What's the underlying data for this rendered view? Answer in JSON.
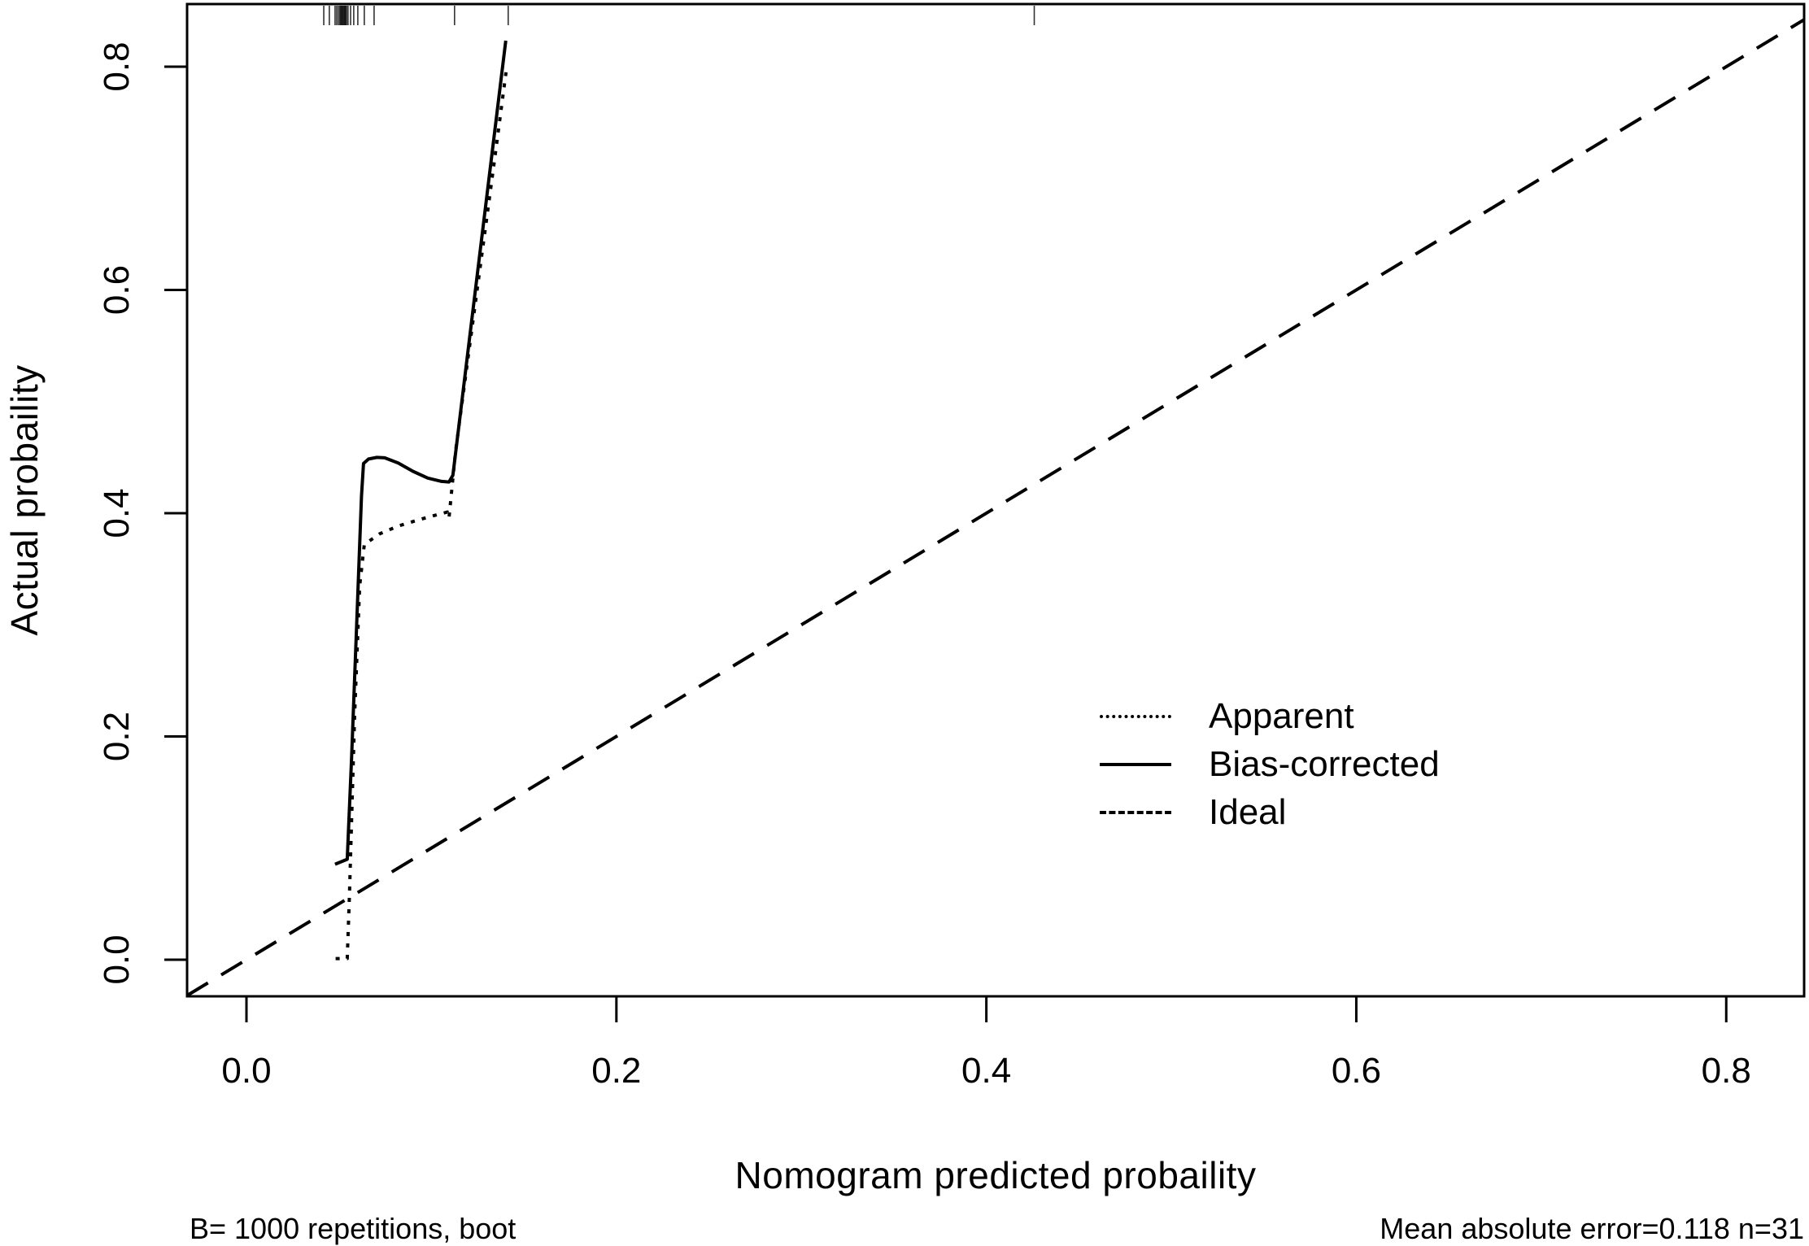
{
  "page": {
    "background_color": "#ffffff",
    "foreground_color": "#000000"
  },
  "chart_data": {
    "type": "line",
    "title": "",
    "xlabel": "Nomogram predicted probaility",
    "ylabel": "Actual probaility",
    "grid": false,
    "legend_position": "right-center",
    "x_axis": {
      "min": -0.0321,
      "max": 0.8421,
      "tick_values": [
        0.0,
        0.2,
        0.4,
        0.6,
        0.8
      ],
      "tick_labels": [
        "0.0",
        "0.2",
        "0.4",
        "0.6",
        "0.8"
      ]
    },
    "y_axis": {
      "min": -0.0328,
      "max": 0.8561,
      "tick_values": [
        0.0,
        0.2,
        0.4,
        0.6,
        0.8
      ],
      "tick_labels": [
        "0.0",
        "0.2",
        "0.4",
        "0.6",
        "0.8"
      ]
    },
    "series": [
      {
        "name": "Apparent",
        "style": "dotted",
        "color": "#000000",
        "points": [
          [
            0.0482,
            0.001
          ],
          [
            0.0545,
            0.001
          ],
          [
            0.0557,
            0.06
          ],
          [
            0.0585,
            0.22
          ],
          [
            0.0612,
            0.335
          ],
          [
            0.0637,
            0.372
          ],
          [
            0.072,
            0.3815
          ],
          [
            0.082,
            0.3885
          ],
          [
            0.092,
            0.3935
          ],
          [
            0.1005,
            0.3975
          ],
          [
            0.1086,
            0.401
          ],
          [
            0.1095,
            0.3957
          ],
          [
            0.113,
            0.455
          ],
          [
            0.12,
            0.542
          ],
          [
            0.128,
            0.641
          ],
          [
            0.134,
            0.715
          ],
          [
            0.1403,
            0.795
          ]
        ]
      },
      {
        "name": "Bias-corrected",
        "style": "solid",
        "color": "#000000",
        "points": [
          [
            0.0479,
            0.0855
          ],
          [
            0.0545,
            0.09
          ],
          [
            0.0568,
            0.18
          ],
          [
            0.0598,
            0.31
          ],
          [
            0.0622,
            0.415
          ],
          [
            0.0633,
            0.4445
          ],
          [
            0.066,
            0.4485
          ],
          [
            0.0705,
            0.45
          ],
          [
            0.0747,
            0.4496
          ],
          [
            0.082,
            0.445
          ],
          [
            0.09,
            0.4375
          ],
          [
            0.098,
            0.4315
          ],
          [
            0.1055,
            0.4285
          ],
          [
            0.1095,
            0.428
          ],
          [
            0.1116,
            0.434
          ],
          [
            0.118,
            0.521
          ],
          [
            0.126,
            0.63
          ],
          [
            0.134,
            0.739
          ],
          [
            0.1402,
            0.8233
          ]
        ]
      },
      {
        "name": "Ideal",
        "style": "dashed",
        "color": "#000000",
        "points": [
          [
            -0.0321,
            -0.0321
          ],
          [
            0.8421,
            0.8421
          ]
        ]
      }
    ],
    "rug_x": [
      0.0418,
      0.0448,
      0.0479,
      0.0488,
      0.0497,
      0.0505,
      0.051,
      0.0514,
      0.0519,
      0.0523,
      0.0528,
      0.0532,
      0.0536,
      0.0541,
      0.0549,
      0.0563,
      0.058,
      0.0602,
      0.0637,
      0.069,
      0.1125,
      0.1415,
      0.4259
    ],
    "stats": {
      "repetitions": 1000,
      "method": "boot",
      "mean_absolute_error": 0.118,
      "n": 31
    },
    "annotations": {
      "bottom_left": "B= 1000 repetitions, boot",
      "bottom_right": "Mean absolute error=0.118 n=31"
    }
  },
  "legend": {
    "items": [
      {
        "label": "Apparent",
        "line_style": "dotted"
      },
      {
        "label": "Bias-corrected",
        "line_style": "solid"
      },
      {
        "label": "Ideal",
        "line_style": "dashed"
      }
    ]
  }
}
